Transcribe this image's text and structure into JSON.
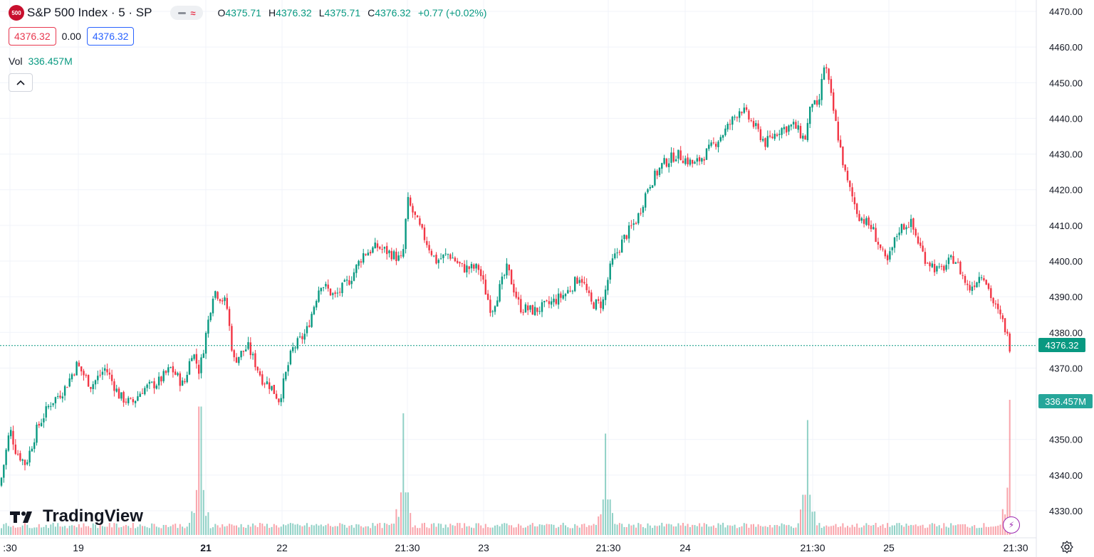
{
  "header": {
    "symbol_badge": "500",
    "title": "S&P 500 Index · 5 · SP",
    "ohlc": {
      "o_label": "O",
      "o": "4375.71",
      "h_label": "H",
      "h": "4376.32",
      "l_label": "L",
      "l": "4375.71",
      "c_label": "C",
      "c": "4376.32",
      "change": "+0.77 (+0.02%)"
    }
  },
  "trade": {
    "sell_price": "4376.32",
    "spread": "0.00",
    "buy_price": "4376.32"
  },
  "volume": {
    "label": "Vol",
    "value": "336.457M"
  },
  "branding": {
    "name": "TradingView"
  },
  "colors": {
    "up": "#089981",
    "down": "#f23645",
    "grid": "#f0f3fa",
    "accent_blue": "#2962ff"
  },
  "icons": [
    "collapse-chevron-up-icon",
    "lightning-icon",
    "settings-gear-icon",
    "tradingview-logo-icon"
  ],
  "chart_data": {
    "type": "line",
    "title": "S&P 500 Index · 5 · SP",
    "price_axis": {
      "ticks": [
        "4470.00",
        "4460.00",
        "4450.00",
        "4440.00",
        "4430.00",
        "4420.00",
        "4410.00",
        "4400.00",
        "4390.00",
        "4380.00",
        "4370.00",
        "4350.00",
        "4340.00",
        "4330.00"
      ],
      "range": [
        4325,
        4472
      ],
      "current_price_label": "4376.32",
      "volume_label": "336.457M"
    },
    "time_axis": {
      "ticks": [
        ":30",
        "19",
        "21",
        "22",
        "21:30",
        "23",
        "21:30",
        "24",
        "21:30",
        "25",
        "21:30"
      ],
      "bold_ticks": [
        "21"
      ]
    },
    "series": [
      {
        "x": [
          0,
          14,
          22,
          36,
          52,
          70,
          90,
          108,
          128,
          148,
          168,
          185,
          200,
          222,
          240,
          258,
          270,
          280,
          300,
          318,
          328,
          348,
          368,
          380,
          392,
          410,
          430,
          450,
          470,
          492,
          510,
          530,
          550,
          565,
          572,
          590,
          612,
          630,
          650,
          672,
          690,
          712,
          730,
          750,
          772,
          795,
          815,
          830,
          846,
          858,
          875,
          895,
          910,
          930,
          950,
          975,
          995,
          1020,
          1040,
          1055,
          1075,
          1095,
          1115,
          1130,
          1140,
          1148,
          1158,
          1172,
          1188,
          1205,
          1225,
          1245,
          1262,
          1278,
          1298,
          1318,
          1340,
          1360,
          1380,
          1395,
          1410,
          1418
        ],
        "y": [
          4337,
          4353,
          4347,
          4343,
          4353,
          4360,
          4364,
          4371,
          4365,
          4370,
          4362,
          4360,
          4364,
          4366,
          4370,
          4365,
          4375,
          4369,
          4392,
          4388,
          4372,
          4376,
          4367,
          4365,
          4361,
          4375,
          4380,
          4394,
          4390,
          4395,
          4402,
          4404,
          4402,
          4400,
          4417,
          4409,
          4400,
          4402,
          4398,
          4398,
          4386,
          4398,
          4387,
          4386,
          4388,
          4391,
          4396,
          4388,
          4388,
          4399,
          4406,
          4412,
          4421,
          4427,
          4430,
          4427,
          4431,
          4437,
          4443,
          4439,
          4433,
          4437,
          4438,
          4434,
          4445,
          4442,
          4456,
          4440,
          4423,
          4413,
          4409,
          4399,
          4409,
          4411,
          4401,
          4397,
          4401,
          4392,
          4397,
          4388,
          4382,
          4376
        ]
      }
    ],
    "volume_series": {
      "spikes": [
        {
          "near_tick": "21",
          "value_rel": 0.95
        },
        {
          "near_tick": "21:30",
          "value_rel": 0.9
        },
        {
          "near_tick": "21:30",
          "value_rel": 0.75
        },
        {
          "near_tick": "21:30",
          "value_rel": 0.85
        },
        {
          "near_tick": "21:30",
          "value_rel": 1.0
        }
      ]
    },
    "grid": true,
    "legend": "none"
  }
}
